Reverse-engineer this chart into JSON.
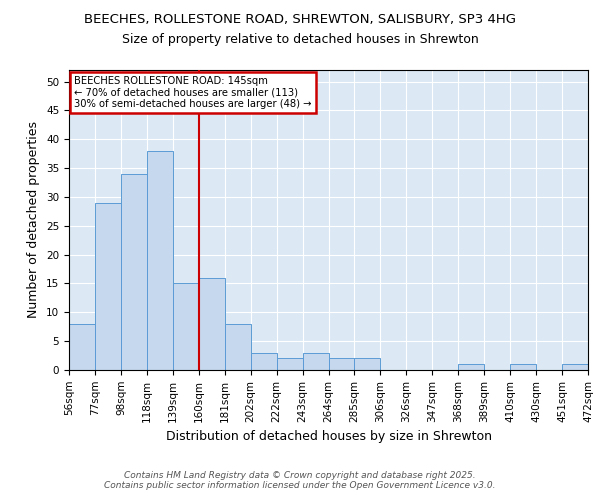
{
  "title1": "BEECHES, ROLLESTONE ROAD, SHREWTON, SALISBURY, SP3 4HG",
  "title2": "Size of property relative to detached houses in Shrewton",
  "xlabel": "Distribution of detached houses by size in Shrewton",
  "ylabel": "Number of detached properties",
  "bin_labels": [
    "56sqm",
    "77sqm",
    "98sqm",
    "118sqm",
    "139sqm",
    "160sqm",
    "181sqm",
    "202sqm",
    "222sqm",
    "243sqm",
    "264sqm",
    "285sqm",
    "306sqm",
    "326sqm",
    "347sqm",
    "368sqm",
    "389sqm",
    "410sqm",
    "430sqm",
    "451sqm",
    "472sqm"
  ],
  "bar_heights": [
    8,
    29,
    34,
    38,
    15,
    16,
    8,
    3,
    2,
    3,
    2,
    2,
    0,
    0,
    0,
    1,
    0,
    1,
    0,
    1
  ],
  "bar_color": "#c5d8ed",
  "bar_edgecolor": "#5b9bd5",
  "red_line_index": 4,
  "red_line_color": "#cc0000",
  "annotation_text": "BEECHES ROLLESTONE ROAD: 145sqm\n← 70% of detached houses are smaller (113)\n30% of semi-detached houses are larger (48) →",
  "annotation_box_edgecolor": "#cc0000",
  "footnote": "Contains HM Land Registry data © Crown copyright and database right 2025.\nContains public sector information licensed under the Open Government Licence v3.0.",
  "ylim": [
    0,
    52
  ],
  "yticks": [
    0,
    5,
    10,
    15,
    20,
    25,
    30,
    35,
    40,
    45,
    50
  ],
  "bg_color": "#dce9f5",
  "fig_bg_color": "#ffffff",
  "title1_fontsize": 9.5,
  "title2_fontsize": 9,
  "label_fontsize": 9,
  "tick_fontsize": 7.5,
  "footnote_fontsize": 6.5
}
